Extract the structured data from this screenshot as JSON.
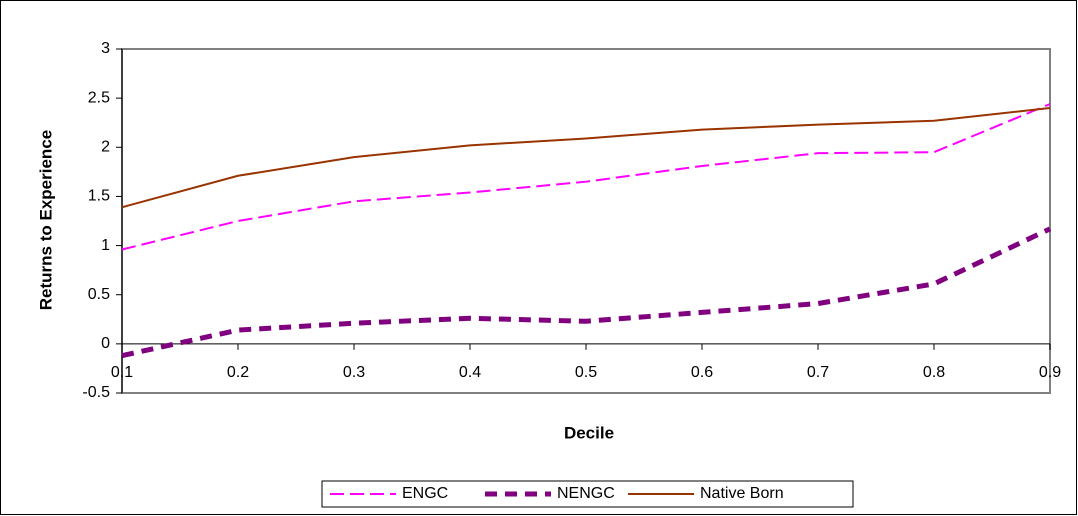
{
  "chart_data": {
    "type": "line",
    "x_label": "Decile",
    "y_label": "Returns to Experience",
    "x": [
      0.1,
      0.2,
      0.3,
      0.4,
      0.5,
      0.6,
      0.7,
      0.8,
      0.9
    ],
    "series": [
      {
        "name": "ENGC",
        "color": "#ff00ff",
        "dash": "dashed",
        "values": [
          0.96,
          1.25,
          1.45,
          1.54,
          1.65,
          1.81,
          1.94,
          1.95,
          2.44
        ]
      },
      {
        "name": "NENGC",
        "color": "#800080",
        "dash": "thick-dashed",
        "values": [
          -0.12,
          0.14,
          0.21,
          0.26,
          0.23,
          0.32,
          0.41,
          0.61,
          1.17
        ]
      },
      {
        "name": "Native Born",
        "color": "#993300",
        "dash": "solid",
        "values": [
          1.39,
          1.71,
          1.9,
          2.02,
          2.09,
          2.18,
          2.23,
          2.27,
          2.4
        ]
      }
    ],
    "xlim": [
      0.1,
      0.9
    ],
    "xticks": [
      0.1,
      0.2,
      0.3,
      0.4,
      0.5,
      0.6,
      0.7,
      0.8,
      0.9
    ],
    "ylim": [
      -0.5,
      3
    ],
    "yticks": [
      -0.5,
      0,
      0.5,
      1,
      1.5,
      2,
      2.5,
      3
    ],
    "legend": "bottom"
  }
}
